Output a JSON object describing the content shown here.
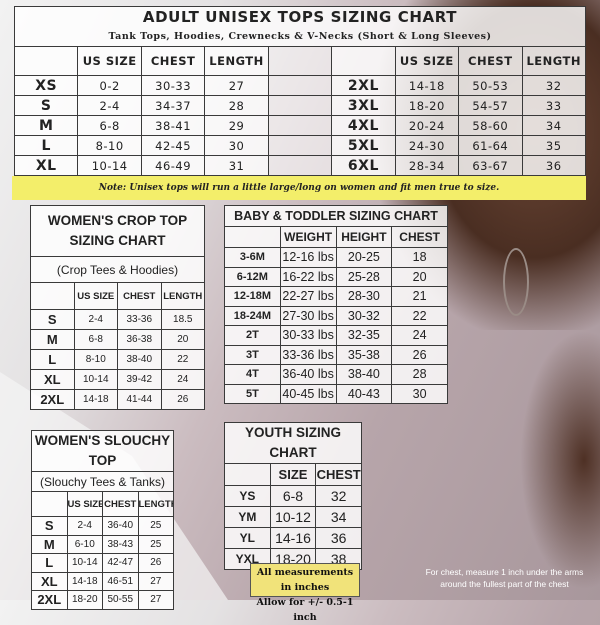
{
  "colors": {
    "note_bar": "#f3ee6a",
    "measurement_box": "#f1e37a",
    "border": "#3a3a3a"
  },
  "adult": {
    "title": "ADULT UNISEX TOPS SIZING CHART",
    "subtitle": "Tank Tops, Hoodies, Crewnecks & V-Necks (Short & Long Sleeves)",
    "headers": [
      "US SIZE",
      "CHEST",
      "LENGTH"
    ],
    "left_rows": [
      [
        "XS",
        "0-2",
        "30-33",
        "27"
      ],
      [
        "S",
        "2-4",
        "34-37",
        "28"
      ],
      [
        "M",
        "6-8",
        "38-41",
        "29"
      ],
      [
        "L",
        "8-10",
        "42-45",
        "30"
      ],
      [
        "XL",
        "10-14",
        "46-49",
        "31"
      ]
    ],
    "right_rows": [
      [
        "2XL",
        "14-18",
        "50-53",
        "32"
      ],
      [
        "3XL",
        "18-20",
        "54-57",
        "33"
      ],
      [
        "4XL",
        "20-24",
        "58-60",
        "34"
      ],
      [
        "5XL",
        "24-30",
        "61-64",
        "35"
      ],
      [
        "6XL",
        "28-34",
        "63-67",
        "36"
      ]
    ]
  },
  "note": "Note: Unisex tops will run a little large/long on women and fit men true to size.",
  "crop": {
    "title": "WOMEN'S CROP TOP SIZING CHART",
    "subtitle": "(Crop Tees & Hoodies)",
    "headers": [
      "US SIZE",
      "CHEST",
      "LENGTH"
    ],
    "rows": [
      [
        "S",
        "2-4",
        "33-36",
        "18.5"
      ],
      [
        "M",
        "6-8",
        "36-38",
        "20"
      ],
      [
        "L",
        "8-10",
        "38-40",
        "22"
      ],
      [
        "XL",
        "10-14",
        "39-42",
        "24"
      ],
      [
        "2XL",
        "14-18",
        "41-44",
        "26"
      ]
    ]
  },
  "baby": {
    "title": "BABY & TODDLER SIZING CHART",
    "headers": [
      "WEIGHT",
      "HEIGHT",
      "CHEST"
    ],
    "rows": [
      [
        "3-6M",
        "12-16 lbs",
        "20-25",
        "18"
      ],
      [
        "6-12M",
        "16-22 lbs",
        "25-28",
        "20"
      ],
      [
        "12-18M",
        "22-27 lbs",
        "28-30",
        "21"
      ],
      [
        "18-24M",
        "27-30 lbs",
        "30-32",
        "22"
      ],
      [
        "2T",
        "30-33 lbs",
        "32-35",
        "24"
      ],
      [
        "3T",
        "33-36 lbs",
        "35-38",
        "26"
      ],
      [
        "4T",
        "36-40 lbs",
        "38-40",
        "28"
      ],
      [
        "5T",
        "40-45 lbs",
        "40-43",
        "30"
      ]
    ]
  },
  "slouchy": {
    "title": "WOMEN'S SLOUCHY TOP",
    "subtitle": "(Slouchy Tees & Tanks)",
    "headers": [
      "US SIZE",
      "CHEST",
      "LENGTH"
    ],
    "rows": [
      [
        "S",
        "2-4",
        "36-40",
        "25"
      ],
      [
        "M",
        "6-10",
        "38-43",
        "25"
      ],
      [
        "L",
        "10-14",
        "42-47",
        "26"
      ],
      [
        "XL",
        "14-18",
        "46-51",
        "27"
      ],
      [
        "2XL",
        "18-20",
        "50-55",
        "27"
      ]
    ]
  },
  "youth": {
    "title": "YOUTH SIZING CHART",
    "headers": [
      "SIZE",
      "CHEST"
    ],
    "rows": [
      [
        "YS",
        "6-8",
        "32"
      ],
      [
        "YM",
        "10-12",
        "34"
      ],
      [
        "YL",
        "14-16",
        "36"
      ],
      [
        "YXL",
        "18-20",
        "38"
      ]
    ]
  },
  "measurements": {
    "line1": "All measurements in inches",
    "line2": "Allow for +/- 0.5-1 inch"
  },
  "chest_note": {
    "line1": "For chest, measure 1 inch under the arms",
    "line2": "around the fullest part of the chest"
  }
}
